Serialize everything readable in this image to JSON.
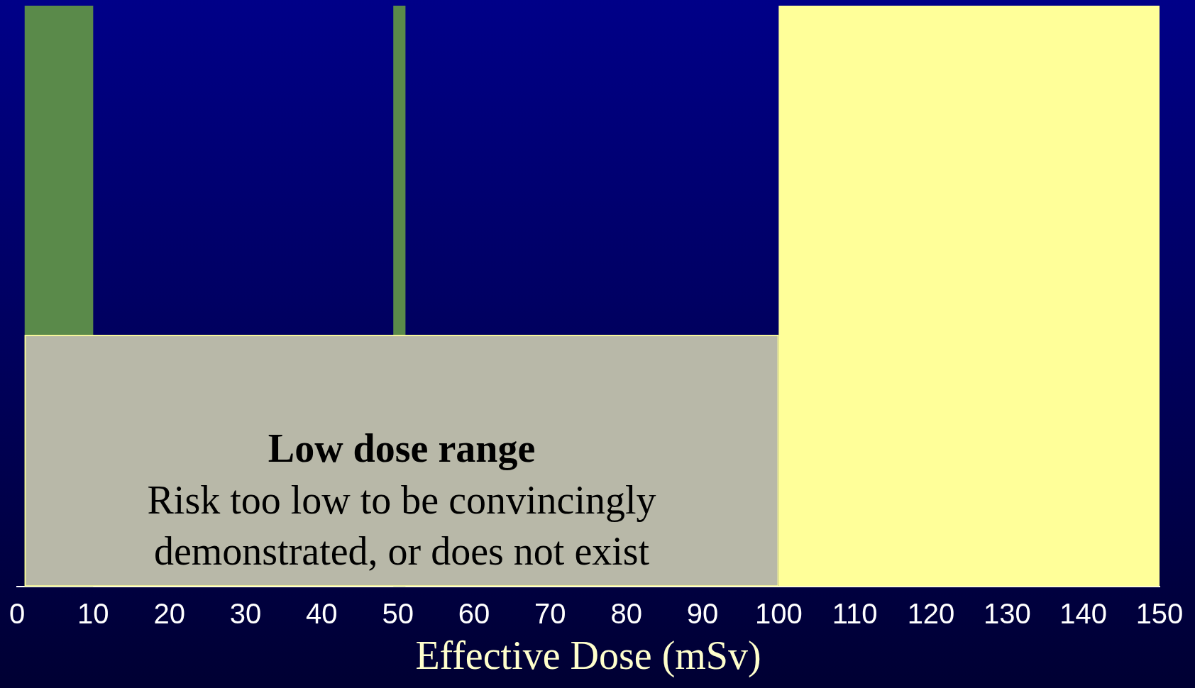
{
  "chart_data": {
    "type": "bar",
    "orientation": "horizontal",
    "categories": [
      null
    ],
    "values": [
      99
    ],
    "base": [
      1
    ],
    "color": "#b8b8a8",
    "xlim": [
      0,
      150
    ],
    "xticks": [
      0,
      10,
      20,
      30,
      40,
      50,
      60,
      70,
      80,
      90,
      100,
      110,
      120,
      130,
      140,
      150
    ],
    "xlabel": "Effective Dose (mSv)",
    "bands": [
      {
        "axis": "x",
        "from": 1,
        "to": 10,
        "color": "#5a8a4a"
      },
      {
        "axis": "x",
        "from": 49.4,
        "to": 51,
        "color": "#5a8a4a"
      },
      {
        "axis": "x",
        "from": 100,
        "to": 150,
        "color": "#ffff99"
      }
    ],
    "annotations": [
      "Low dose range",
      "Risk too low to be convincingly demonstrated, or does not exist"
    ],
    "grid": false,
    "legend": false
  }
}
